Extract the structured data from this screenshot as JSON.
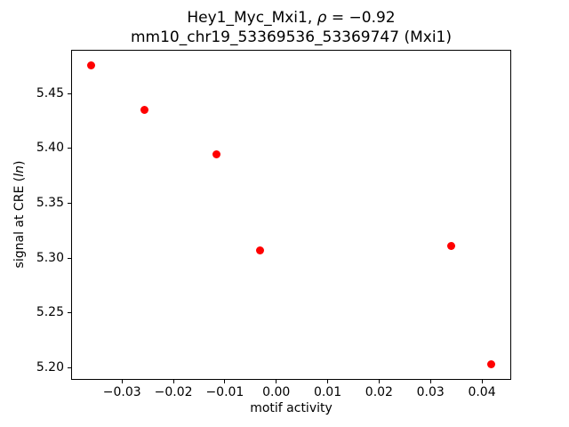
{
  "title": {
    "line1_prefix": "Hey1_Myc_Mxi1, ",
    "rho": "ρ",
    "line1_suffix": " = −0.92",
    "line2": "mm10_chr19_53369536_53369747 (Mxi1)"
  },
  "ylabel_parts": {
    "prefix": "signal at CRE (",
    "italic": "ln",
    "suffix": ")"
  },
  "colors": {
    "marker": "#ff0000",
    "background": "#ffffff",
    "axes": "#000000"
  },
  "chart_data": {
    "type": "scatter",
    "title": "Hey1_Myc_Mxi1, ρ = −0.92\nmm10_chr19_53369536_53369747 (Mxi1)",
    "xlabel": "motif activity",
    "ylabel": "signal at CRE (ln)",
    "points": [
      {
        "x": -0.036,
        "y": 5.476
      },
      {
        "x": -0.0257,
        "y": 5.435
      },
      {
        "x": -0.0116,
        "y": 5.395
      },
      {
        "x": -0.0032,
        "y": 5.307
      },
      {
        "x": 0.034,
        "y": 5.311
      },
      {
        "x": 0.0418,
        "y": 5.203
      }
    ],
    "xlim": [
      -0.0399,
      0.0457
    ],
    "ylim": [
      5.189,
      5.49
    ],
    "x_ticks": [
      -0.03,
      -0.02,
      -0.01,
      0.0,
      0.01,
      0.02,
      0.03,
      0.04
    ],
    "x_tick_labels": [
      "−0.03",
      "−0.02",
      "−0.01",
      "0.00",
      "0.01",
      "0.02",
      "0.03",
      "0.04"
    ],
    "y_ticks": [
      5.2,
      5.25,
      5.3,
      5.35,
      5.4,
      5.45
    ],
    "y_tick_labels": [
      "5.20",
      "5.25",
      "5.30",
      "5.35",
      "5.40",
      "5.45"
    ],
    "grid": false,
    "legend": null,
    "marker_color": "#ff0000"
  }
}
